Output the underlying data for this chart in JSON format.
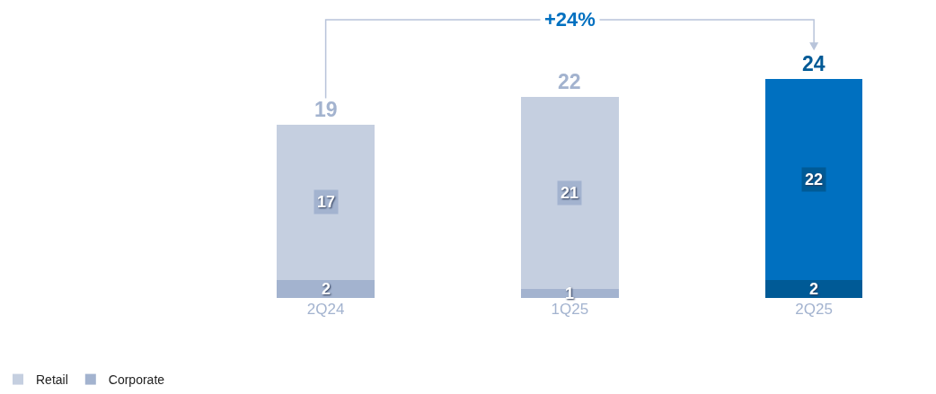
{
  "chart_data": {
    "type": "bar",
    "stacked": true,
    "categories": [
      "2Q24",
      "1Q25",
      "2Q25"
    ],
    "series": [
      {
        "name": "Corporate",
        "color": "#a3b3cf",
        "colors": [
          "#a3b3cf",
          "#a3b3cf",
          "#005a96"
        ],
        "values": [
          2,
          1,
          2
        ]
      },
      {
        "name": "Retail",
        "color": "#c5cfe0",
        "colors": [
          "#c5cfe0",
          "#c5cfe0",
          "#0070c0"
        ],
        "values": [
          17,
          21,
          22
        ]
      }
    ],
    "totals": [
      "19",
      "22",
      "24"
    ],
    "data_labels": true,
    "annotations": [
      "+24%"
    ],
    "legend": "bottom left"
  }
}
